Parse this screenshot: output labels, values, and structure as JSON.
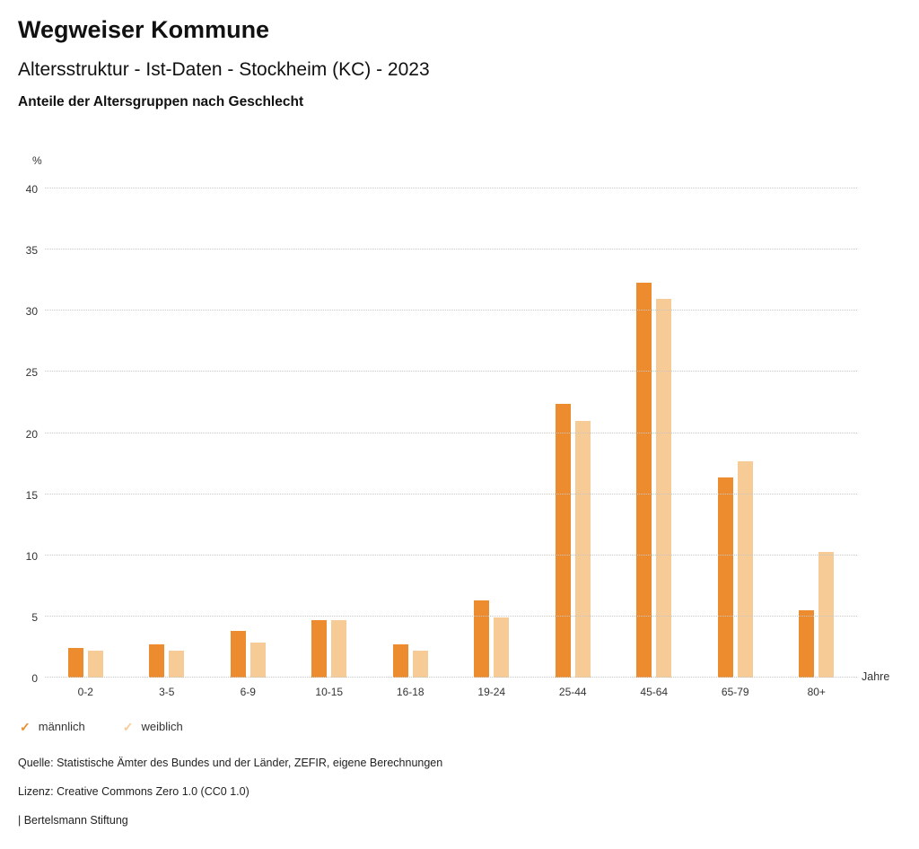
{
  "header": {
    "title": "Wegweiser Kommune",
    "subtitle": "Altersstruktur - Ist-Daten - Stockheim (KC) - 2023",
    "chart_heading": "Anteile der Altersgruppen nach Geschlecht"
  },
  "chart_data": {
    "type": "bar",
    "title": "Anteile der Altersgruppen nach Geschlecht",
    "categories": [
      "0-2",
      "3-5",
      "6-9",
      "10-15",
      "16-18",
      "19-24",
      "25-44",
      "45-64",
      "65-79",
      "80+"
    ],
    "series": [
      {
        "name": "männlich",
        "color": "#ED8C2E",
        "values": [
          2.4,
          2.7,
          3.8,
          4.7,
          2.7,
          6.3,
          22.4,
          32.3,
          16.4,
          5.5
        ]
      },
      {
        "name": "weiblich",
        "color": "#F7CB96",
        "values": [
          2.2,
          2.2,
          2.9,
          4.7,
          2.2,
          4.9,
          21.0,
          31.0,
          17.7,
          10.3
        ]
      }
    ],
    "xlabel": "Jahre",
    "ylabel": "%",
    "ylim": [
      0,
      40
    ],
    "yticks": [
      0,
      5,
      10,
      15,
      20,
      25,
      30,
      35,
      40
    ],
    "grid": true,
    "legend_position": "bottom",
    "legend_marker": "✓"
  },
  "footer": {
    "source": "Quelle: Statistische Ämter des Bundes und der Länder, ZEFIR, eigene Berechnungen",
    "license": "Lizenz: Creative Commons Zero 1.0 (CC0 1.0)",
    "publisher": "| Bertelsmann Stiftung"
  }
}
